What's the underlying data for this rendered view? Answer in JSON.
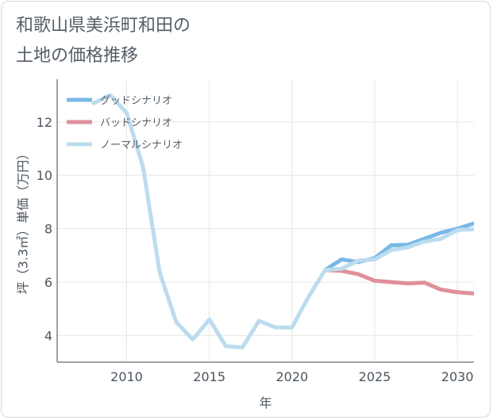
{
  "title": "和歌山県美浜町和田の\n土地の価格推移",
  "chart_data": {
    "type": "line",
    "xlabel": "年",
    "ylabel": "坪（3.3㎡）単価（万円）",
    "xlim": [
      2005.8,
      2031
    ],
    "ylim": [
      3,
      13.6
    ],
    "xticks": [
      2010,
      2015,
      2020,
      2025,
      2030
    ],
    "yticks": [
      4,
      6,
      8,
      10,
      12
    ],
    "grid": true,
    "legend_position": "top-left",
    "series": [
      {
        "name": "グッドシナリオ",
        "color": "#78b8e8",
        "x": [
          2022,
          2023,
          2024,
          2025,
          2026,
          2027,
          2028,
          2029,
          2030,
          2031
        ],
        "y": [
          6.45,
          6.85,
          6.75,
          6.9,
          7.38,
          7.4,
          7.62,
          7.85,
          8.0,
          8.2
        ]
      },
      {
        "name": "バッドシナリオ",
        "color": "#e0909a",
        "x": [
          2022,
          2023,
          2024,
          2025,
          2026,
          2027,
          2028,
          2029,
          2030,
          2031
        ],
        "y": [
          6.45,
          6.42,
          6.3,
          6.05,
          6.0,
          5.95,
          5.98,
          5.72,
          5.62,
          5.57
        ]
      },
      {
        "name": "ノーマルシナリオ",
        "color": "#bcdcee",
        "x": [
          2008,
          2009,
          2010,
          2011,
          2012,
          2013,
          2014,
          2015,
          2016,
          2017,
          2018,
          2019,
          2020,
          2021,
          2022,
          2023,
          2024,
          2025,
          2026,
          2027,
          2028,
          2029,
          2030,
          2031
        ],
        "y": [
          12.7,
          13.0,
          12.35,
          10.3,
          6.35,
          4.5,
          3.85,
          4.6,
          3.6,
          3.55,
          4.55,
          4.3,
          4.3,
          5.45,
          6.45,
          6.5,
          6.8,
          6.85,
          7.2,
          7.3,
          7.52,
          7.62,
          7.95,
          7.98
        ]
      }
    ]
  }
}
